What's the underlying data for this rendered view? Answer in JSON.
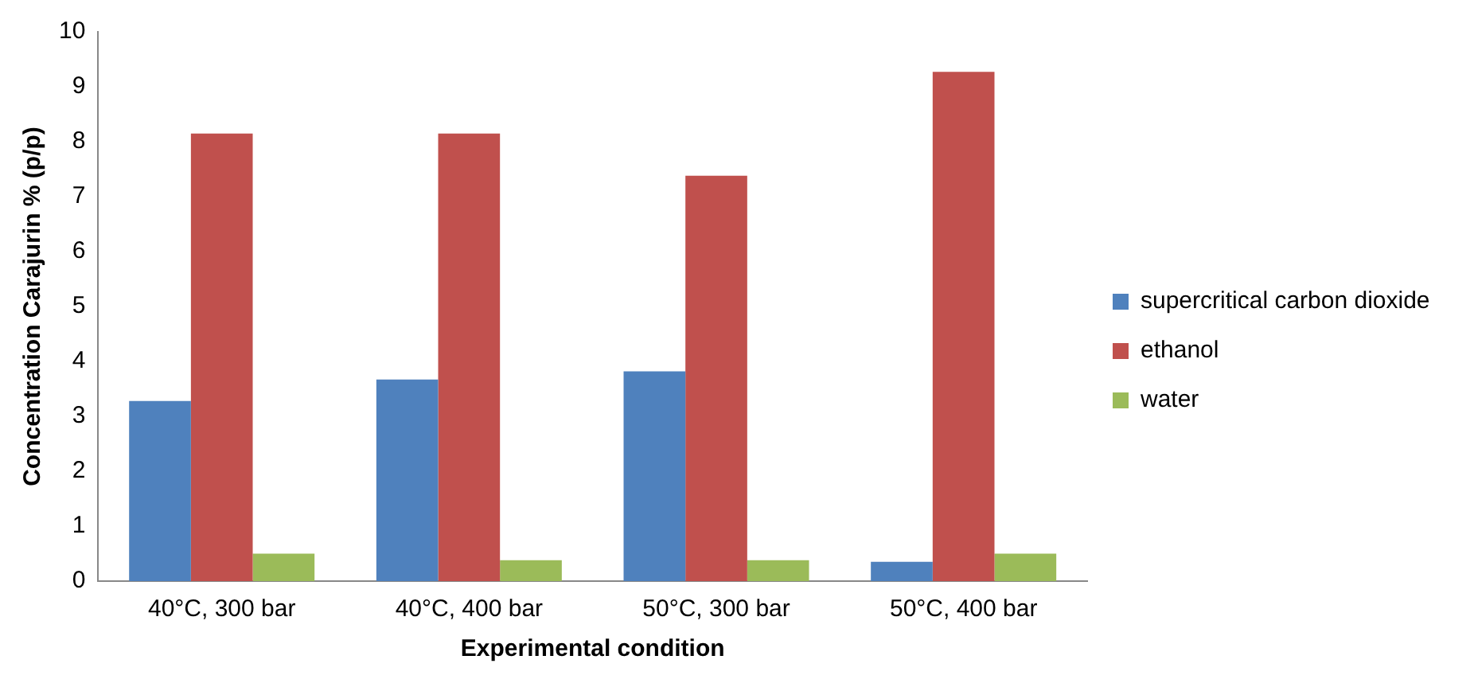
{
  "chart_data": {
    "type": "bar",
    "xlabel": "Experimental condition",
    "ylabel": "Concentration Carajurin % (p/p)",
    "categories": [
      "40°C, 300 bar",
      "40°C, 400 bar",
      "50°C, 300 bar",
      "50°C, 400 bar"
    ],
    "series": [
      {
        "name": "supercritical carbon dioxide",
        "color": "#4f81bd",
        "values": [
          3.28,
          3.67,
          3.82,
          0.35
        ]
      },
      {
        "name": "ethanol",
        "color": "#c0504d",
        "values": [
          8.15,
          8.15,
          7.38,
          9.27
        ]
      },
      {
        "name": "water",
        "color": "#9bbb59",
        "values": [
          0.5,
          0.38,
          0.38,
          0.5
        ]
      }
    ],
    "ylim": [
      0,
      10
    ],
    "yticks": [
      0,
      1,
      2,
      3,
      4,
      5,
      6,
      7,
      8,
      9,
      10
    ],
    "grid": false,
    "legend": "right"
  }
}
